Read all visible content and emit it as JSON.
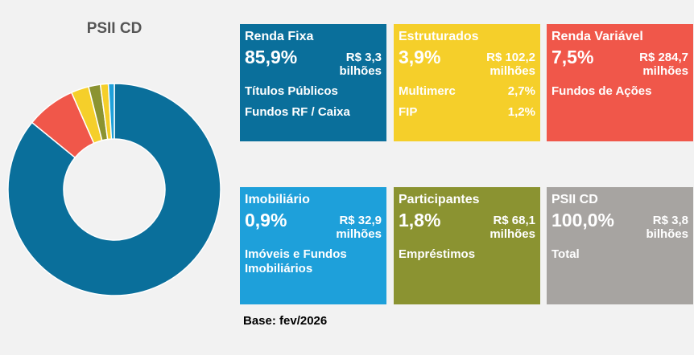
{
  "chart_data": {
    "type": "pie",
    "title": "PSII CD",
    "donut": true,
    "values": [
      85.9,
      7.5,
      2.7,
      1.8,
      1.2,
      0.9
    ],
    "colors": [
      "#0a6f9b",
      "#f0574a",
      "#f5cf2a",
      "#8b9331",
      "#f5cf2a",
      "#1ea0da"
    ]
  },
  "tiles": [
    {
      "title": "Renda Fixa",
      "percent": "85,9%",
      "amount": "R$ 3,3",
      "unit": "bilhões",
      "color": "#0a6f9b",
      "items": [
        {
          "label": "Títulos Públicos"
        },
        {
          "label": "Fundos RF / Caixa"
        }
      ]
    },
    {
      "title": "Estruturados",
      "percent": "3,9%",
      "amount": "R$ 102,2",
      "unit": "milhões",
      "color": "#f5cf2a",
      "items": [
        {
          "label": "Multimerc",
          "value": "2,7%"
        },
        {
          "label": "FIP",
          "value": "1,2%"
        }
      ]
    },
    {
      "title": "Renda Variável",
      "percent": "7,5%",
      "amount": "R$ 284,7",
      "unit": "milhões",
      "color": "#f0574a",
      "items": [
        {
          "label": "Fundos de Ações"
        }
      ]
    },
    {
      "title": "Imobiliário",
      "percent": "0,9%",
      "amount": "R$ 32,9",
      "unit": "milhões",
      "color": "#1ea0da",
      "items": [
        {
          "label": "Imóveis e Fundos Imobiliários"
        }
      ]
    },
    {
      "title": "Participantes",
      "percent": "1,8%",
      "amount": "R$ 68,1",
      "unit": "milhões",
      "color": "#8b9331",
      "items": [
        {
          "label": "Empréstimos"
        }
      ]
    },
    {
      "title": "PSII CD",
      "percent": "100,0%",
      "amount": "R$ 3,8",
      "unit": "bilhões",
      "color": "#a7a4a1",
      "items": [
        {
          "label": "Total"
        }
      ]
    }
  ],
  "base": "Base: fev/2026"
}
